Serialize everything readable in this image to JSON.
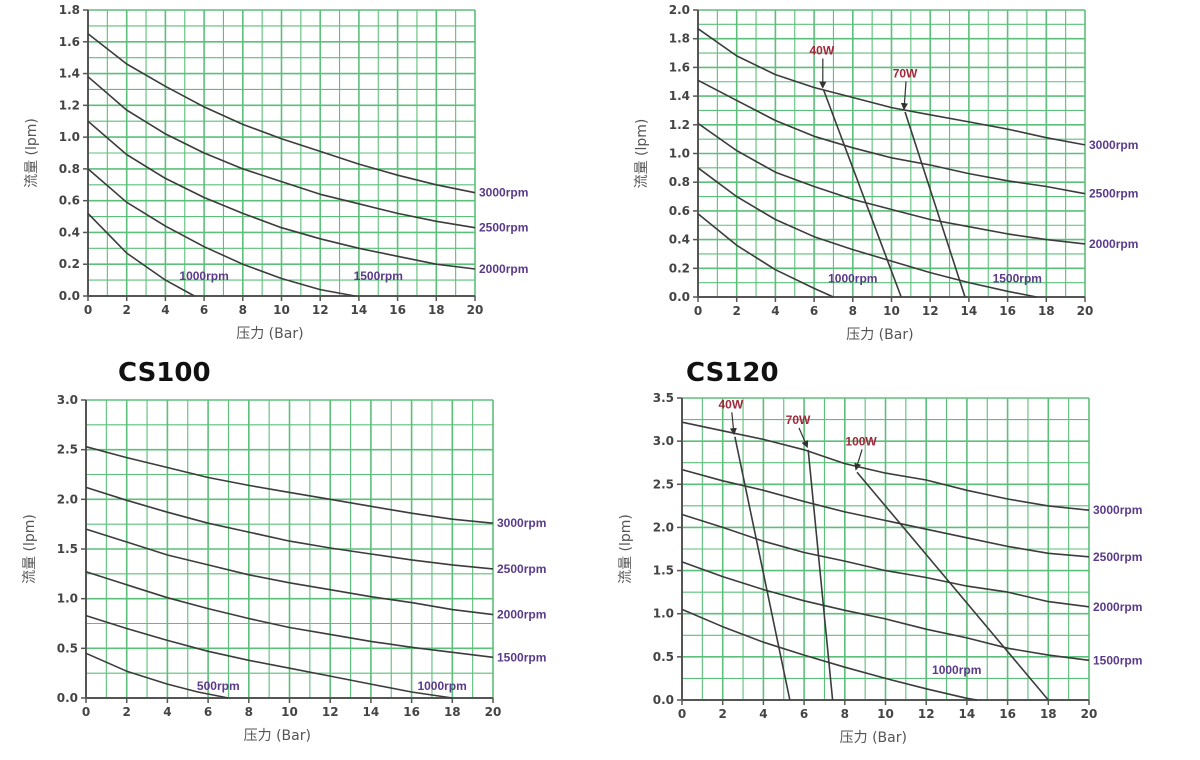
{
  "chart_data": [
    {
      "type": "line",
      "title": "",
      "xlabel": "压力 (Bar)",
      "ylabel": "流量 (lpm)",
      "xlim": [
        0,
        20
      ],
      "ylim": [
        0,
        1.8
      ],
      "xticks": [
        "0",
        "2",
        "4",
        "6",
        "8",
        "10",
        "12",
        "14",
        "16",
        "18",
        "20"
      ],
      "yticks": [
        "0.0",
        "0.2",
        "0.4",
        "0.6",
        "0.8",
        "1.0",
        "1.2",
        "1.4",
        "1.6",
        "1.8"
      ],
      "grid": true,
      "series": [
        {
          "name": "3000rpm",
          "label_pos": "end",
          "x": [
            0,
            2,
            4,
            6,
            8,
            10,
            12,
            14,
            16,
            18,
            20
          ],
          "y": [
            1.65,
            1.46,
            1.32,
            1.19,
            1.08,
            0.99,
            0.91,
            0.83,
            0.76,
            0.7,
            0.65
          ]
        },
        {
          "name": "2500rpm",
          "label_pos": "end",
          "x": [
            0,
            2,
            4,
            6,
            8,
            10,
            12,
            14,
            16,
            18,
            20
          ],
          "y": [
            1.38,
            1.17,
            1.02,
            0.9,
            0.8,
            0.72,
            0.64,
            0.58,
            0.52,
            0.47,
            0.43
          ]
        },
        {
          "name": "2000rpm",
          "label_pos": "end",
          "x": [
            0,
            2,
            4,
            6,
            8,
            10,
            12,
            14,
            16,
            18,
            20
          ],
          "y": [
            1.1,
            0.89,
            0.74,
            0.62,
            0.52,
            0.43,
            0.36,
            0.3,
            0.25,
            0.2,
            0.17
          ]
        },
        {
          "name": "1500rpm",
          "label_pos": "inside",
          "label_x": 15,
          "label_y": 0.1,
          "x": [
            0,
            2,
            4,
            6,
            8,
            10,
            12,
            13.8
          ],
          "y": [
            0.8,
            0.59,
            0.44,
            0.31,
            0.2,
            0.11,
            0.04,
            0.0
          ]
        },
        {
          "name": "1000rpm",
          "label_pos": "inside",
          "label_x": 6,
          "label_y": 0.1,
          "x": [
            0,
            2,
            4,
            5.5
          ],
          "y": [
            0.52,
            0.27,
            0.1,
            0.0
          ]
        }
      ],
      "power_lines": []
    },
    {
      "type": "line",
      "title": "",
      "xlabel": "压力 (Bar)",
      "ylabel": "流量 (lpm)",
      "xlim": [
        0,
        20
      ],
      "ylim": [
        0,
        2.0
      ],
      "xticks": [
        "0",
        "2",
        "4",
        "6",
        "8",
        "10",
        "12",
        "14",
        "16",
        "18",
        "20"
      ],
      "yticks": [
        "0.0",
        "0.2",
        "0.4",
        "0.6",
        "0.8",
        "1.0",
        "1.2",
        "1.4",
        "1.6",
        "1.8",
        "2.0"
      ],
      "grid": true,
      "series": [
        {
          "name": "3000rpm",
          "label_pos": "end",
          "x": [
            0,
            2,
            4,
            6,
            8,
            10,
            12,
            14,
            16,
            18,
            20
          ],
          "y": [
            1.87,
            1.68,
            1.55,
            1.46,
            1.39,
            1.32,
            1.27,
            1.22,
            1.17,
            1.11,
            1.06
          ]
        },
        {
          "name": "2500rpm",
          "label_pos": "end",
          "x": [
            0,
            2,
            4,
            6,
            8,
            10,
            12,
            14,
            16,
            18,
            20
          ],
          "y": [
            1.51,
            1.37,
            1.23,
            1.12,
            1.04,
            0.97,
            0.92,
            0.86,
            0.81,
            0.77,
            0.72
          ]
        },
        {
          "name": "2000rpm",
          "label_pos": "end",
          "x": [
            0,
            2,
            4,
            6,
            8,
            10,
            12,
            14,
            16,
            18,
            20
          ],
          "y": [
            1.21,
            1.02,
            0.87,
            0.77,
            0.68,
            0.61,
            0.54,
            0.49,
            0.44,
            0.4,
            0.37
          ]
        },
        {
          "name": "1500rpm",
          "label_pos": "inside",
          "label_x": 16.5,
          "label_y": 0.1,
          "x": [
            0,
            2,
            4,
            6,
            8,
            10,
            12,
            14,
            16,
            17.5
          ],
          "y": [
            0.9,
            0.7,
            0.54,
            0.42,
            0.33,
            0.25,
            0.17,
            0.1,
            0.04,
            0.0
          ]
        },
        {
          "name": "1000rpm",
          "label_pos": "inside",
          "label_x": 8,
          "label_y": 0.1,
          "x": [
            0,
            2,
            4,
            6,
            7
          ],
          "y": [
            0.58,
            0.36,
            0.19,
            0.06,
            0.0
          ]
        }
      ],
      "power_lines": [
        {
          "name": "40W",
          "x": [
            6.5,
            10.5
          ],
          "y": [
            1.44,
            0.0
          ],
          "label_x": 6.4,
          "label_y": 1.69
        },
        {
          "name": "70W",
          "x": [
            10.7,
            13.8
          ],
          "y": [
            1.29,
            0.0
          ],
          "label_x": 10.7,
          "label_y": 1.53
        }
      ]
    },
    {
      "type": "line",
      "title": "CS100",
      "xlabel": "压力 (Bar)",
      "ylabel": "流量 (lpm)",
      "xlim": [
        0,
        20
      ],
      "ylim": [
        0,
        3.0
      ],
      "xticks": [
        "0",
        "2",
        "4",
        "6",
        "8",
        "10",
        "12",
        "14",
        "16",
        "18",
        "20"
      ],
      "yticks": [
        "0.0",
        "0.5",
        "1.0",
        "1.5",
        "2.0",
        "2.5",
        "3.0"
      ],
      "grid": true,
      "series": [
        {
          "name": "3000rpm",
          "label_pos": "end",
          "x": [
            0,
            2,
            4,
            6,
            8,
            10,
            12,
            14,
            16,
            18,
            20
          ],
          "y": [
            2.53,
            2.42,
            2.32,
            2.22,
            2.14,
            2.07,
            2.0,
            1.93,
            1.86,
            1.8,
            1.76
          ]
        },
        {
          "name": "2500rpm",
          "label_pos": "end",
          "x": [
            0,
            2,
            4,
            6,
            8,
            10,
            12,
            14,
            16,
            18,
            20
          ],
          "y": [
            2.12,
            1.99,
            1.87,
            1.76,
            1.67,
            1.58,
            1.51,
            1.45,
            1.39,
            1.34,
            1.3
          ]
        },
        {
          "name": "2000rpm",
          "label_pos": "end",
          "x": [
            0,
            2,
            4,
            6,
            8,
            10,
            12,
            14,
            16,
            18,
            20
          ],
          "y": [
            1.7,
            1.57,
            1.44,
            1.34,
            1.24,
            1.16,
            1.09,
            1.02,
            0.96,
            0.89,
            0.84
          ]
        },
        {
          "name": "1500rpm",
          "label_pos": "end",
          "x": [
            0,
            2,
            4,
            6,
            8,
            10,
            12,
            14,
            16,
            18,
            20
          ],
          "y": [
            1.27,
            1.14,
            1.01,
            0.9,
            0.8,
            0.71,
            0.64,
            0.57,
            0.51,
            0.46,
            0.41
          ]
        },
        {
          "name": "1000rpm",
          "label_pos": "inside",
          "label_x": 17.5,
          "label_y": 0.08,
          "x": [
            0,
            2,
            4,
            6,
            8,
            10,
            12,
            14,
            16,
            18
          ],
          "y": [
            0.83,
            0.7,
            0.58,
            0.47,
            0.38,
            0.3,
            0.22,
            0.14,
            0.06,
            0.0
          ]
        },
        {
          "name": "500rpm",
          "label_pos": "inside",
          "label_x": 6.5,
          "label_y": 0.08,
          "x": [
            0,
            2,
            4,
            5.5,
            7
          ],
          "y": [
            0.45,
            0.27,
            0.14,
            0.06,
            0.0
          ]
        }
      ],
      "power_lines": []
    },
    {
      "type": "line",
      "title": "CS120",
      "xlabel": "压力 (Bar)",
      "ylabel": "流量 (lpm)",
      "xlim": [
        0,
        20
      ],
      "ylim": [
        0,
        3.5
      ],
      "xticks": [
        "0",
        "2",
        "4",
        "6",
        "8",
        "10",
        "12",
        "14",
        "16",
        "18",
        "20"
      ],
      "yticks": [
        "0.0",
        "0.5",
        "1.0",
        "1.5",
        "2.0",
        "2.5",
        "3.0",
        "3.5"
      ],
      "grid": true,
      "series": [
        {
          "name": "3000rpm",
          "label_pos": "end",
          "x": [
            0,
            2,
            4,
            6,
            8,
            10,
            12,
            14,
            16,
            18,
            20
          ],
          "y": [
            3.22,
            3.12,
            3.02,
            2.9,
            2.74,
            2.63,
            2.55,
            2.43,
            2.33,
            2.25,
            2.2
          ]
        },
        {
          "name": "2500rpm",
          "label_pos": "end",
          "x": [
            0,
            2,
            4,
            6,
            8,
            10,
            12,
            14,
            16,
            18,
            20
          ],
          "y": [
            2.67,
            2.54,
            2.43,
            2.3,
            2.18,
            2.08,
            1.98,
            1.88,
            1.78,
            1.7,
            1.66
          ]
        },
        {
          "name": "2000rpm",
          "label_pos": "end",
          "x": [
            0,
            2,
            4,
            6,
            8,
            10,
            12,
            14,
            16,
            18,
            20
          ],
          "y": [
            2.15,
            2.0,
            1.84,
            1.71,
            1.61,
            1.5,
            1.42,
            1.32,
            1.25,
            1.14,
            1.08
          ]
        },
        {
          "name": "1500rpm",
          "label_pos": "end",
          "x": [
            0,
            2,
            4,
            6,
            8,
            10,
            12,
            14,
            16,
            18,
            20
          ],
          "y": [
            1.6,
            1.43,
            1.28,
            1.15,
            1.04,
            0.94,
            0.82,
            0.72,
            0.6,
            0.52,
            0.46
          ]
        },
        {
          "name": "1000rpm",
          "label_pos": "inside",
          "label_x": 13.5,
          "label_y": 0.3,
          "x": [
            0,
            2,
            4,
            6,
            8,
            10,
            12,
            14,
            14.5
          ],
          "y": [
            1.05,
            0.85,
            0.67,
            0.52,
            0.38,
            0.25,
            0.13,
            0.02,
            0.0
          ]
        }
      ],
      "power_lines": [
        {
          "name": "40W",
          "x": [
            2.6,
            5.3
          ],
          "y": [
            3.05,
            0.0
          ],
          "label_x": 2.4,
          "label_y": 3.38
        },
        {
          "name": "70W",
          "x": [
            6.2,
            7.4
          ],
          "y": [
            2.9,
            0.0
          ],
          "label_x": 5.7,
          "label_y": 3.2
        },
        {
          "name": "100W",
          "x": [
            8.6,
            18.0
          ],
          "y": [
            2.64,
            0.0
          ],
          "label_x": 8.8,
          "label_y": 2.95
        }
      ]
    }
  ]
}
